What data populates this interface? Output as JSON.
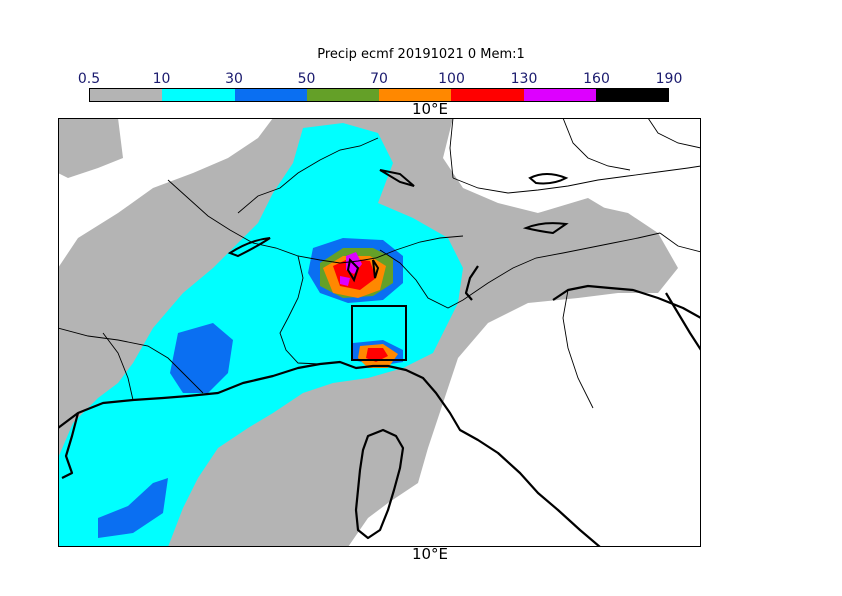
{
  "title": "Precip ecmf 20191021 0 Mem:1",
  "colorbar": {
    "ticks": [
      "0.5",
      "10",
      "30",
      "50",
      "70",
      "100",
      "130",
      "160",
      "190"
    ],
    "colors": [
      "#b4b4b4",
      "#00ffff",
      "#0a6ff2",
      "#64a028",
      "#ff8800",
      "#ff0000",
      "#dd00ff",
      "#000000"
    ]
  },
  "map": {
    "lon_label_top": "10°E",
    "lon_label_bottom": "10°E"
  }
}
